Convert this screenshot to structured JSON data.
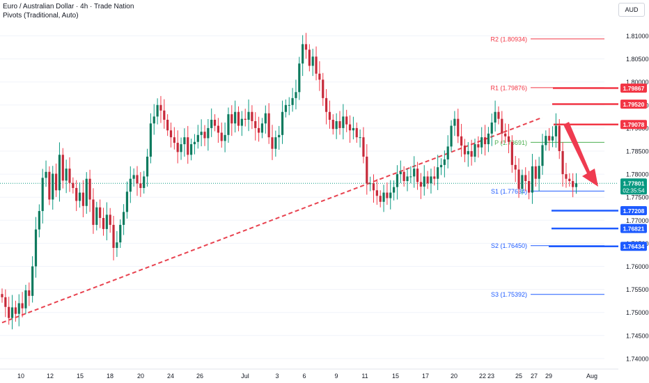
{
  "header": {
    "title": "Euro / Australian Dollar · 4h · Trade Nation",
    "subtitle": "Pivots (Traditional, Auto)",
    "currency_button": "AUD"
  },
  "colors": {
    "up": "#089981",
    "down": "#f23645",
    "body_up": "#0e7a5e",
    "body_down": "#c62a3a",
    "resistance": "#f23645",
    "support": "#1e5bff",
    "pivot_p": "#4caf50",
    "trendline": "#e8424f",
    "arrow": "#ef3b50",
    "price_tag": "#089981",
    "grid": "#f0f3fa"
  },
  "chart_data": {
    "type": "candlestick",
    "ylim": [
      1.74,
      1.812
    ],
    "y_ticks": [
      "1.81000",
      "1.80500",
      "1.80000",
      "1.79500",
      "1.79000",
      "1.78500",
      "1.78000",
      "1.77500",
      "1.77000",
      "1.76500",
      "1.76000",
      "1.75500",
      "1.75000",
      "1.74500",
      "1.74000"
    ],
    "x_ticks": [
      "10",
      "12",
      "15",
      "18",
      "20",
      "24",
      "26",
      "Jul",
      "3",
      "6",
      "9",
      "11",
      "15",
      "17",
      "20",
      "22",
      "23",
      "25",
      "27",
      "29",
      "Aug"
    ],
    "pivots": [
      {
        "label": "R2 (1.80934)",
        "value": 1.80934,
        "color": "resistance"
      },
      {
        "label": "R1 (1.79876)",
        "value": 1.79876,
        "color": "resistance"
      },
      {
        "label": "P (1.78691)",
        "value": 1.78691,
        "color": "pivot_p"
      },
      {
        "label": "S1 (1.77634)",
        "value": 1.77634,
        "color": "support"
      },
      {
        "label": "S2 (1.76450)",
        "value": 1.7645,
        "color": "support"
      },
      {
        "label": "S3 (1.75392)",
        "value": 1.75392,
        "color": "support"
      }
    ],
    "resistance_levels": [
      1.79867,
      1.7952,
      1.79078
    ],
    "support_levels": [
      1.77208,
      1.76821,
      1.76434
    ],
    "level_labels": {
      "r_a": "1.79867",
      "r_b": "1.79520",
      "r_c": "1.79078",
      "s_a": "1.77208",
      "s_b": "1.76821",
      "s_c": "1.76434"
    },
    "current_price": {
      "value": 1.77801,
      "label": "1.77801",
      "countdown": "02:35:54"
    },
    "trendline": {
      "from_index": 0,
      "from_value": 1.7478,
      "to_index": 160,
      "to_value": 1.7923
    },
    "arrow": "bearish",
    "closes": [
      1.7533,
      1.7512,
      1.7488,
      1.7511,
      1.7497,
      1.752,
      1.7509,
      1.7548,
      1.7536,
      1.76,
      1.768,
      1.772,
      1.7792,
      1.7805,
      1.7745,
      1.7801,
      1.7765,
      1.7842,
      1.7786,
      1.7812,
      1.7781,
      1.777,
      1.7742,
      1.776,
      1.7731,
      1.779,
      1.7745,
      1.769,
      1.7728,
      1.7705,
      1.7681,
      1.7712,
      1.769,
      1.764,
      1.7652,
      1.769,
      1.7718,
      1.7762,
      1.779,
      1.7798,
      1.778,
      1.777,
      1.7795,
      1.7838,
      1.791,
      1.7925,
      1.795,
      1.7938,
      1.7918,
      1.7895,
      1.788,
      1.7868,
      1.7848,
      1.7865,
      1.788,
      1.7842,
      1.7865,
      1.787,
      1.7885,
      1.7892,
      1.7878,
      1.79,
      1.7918,
      1.7905,
      1.789,
      1.7872,
      1.7885,
      1.793,
      1.791,
      1.7935,
      1.7905,
      1.792,
      1.7918,
      1.7935,
      1.7915,
      1.79,
      1.789,
      1.791,
      1.7932,
      1.788,
      1.7855,
      1.788,
      1.7885,
      1.7935,
      1.795,
      1.795,
      1.7965,
      1.7978,
      1.804,
      1.8082,
      1.807,
      1.8035,
      1.8055,
      1.8018,
      1.8005,
      1.7965,
      1.7935,
      1.7918,
      1.7898,
      1.7915,
      1.79,
      1.7925,
      1.7908,
      1.7895,
      1.79,
      1.788,
      1.788,
      1.7838,
      1.778,
      1.778,
      1.7765,
      1.7753,
      1.774,
      1.776,
      1.7748,
      1.776,
      1.7772,
      1.78,
      1.7805,
      1.7785,
      1.7795,
      1.7795,
      1.7812,
      1.7783,
      1.7773,
      1.7795,
      1.778,
      1.7795,
      1.779,
      1.7815,
      1.782,
      1.7832,
      1.786,
      1.7905,
      1.792,
      1.7882,
      1.7862,
      1.7843,
      1.785,
      1.7838,
      1.7865,
      1.7858,
      1.788,
      1.7865,
      1.7888,
      1.7912,
      1.7935,
      1.792,
      1.7888,
      1.7882,
      1.787,
      1.782,
      1.781,
      1.7768,
      1.7798,
      1.7785,
      1.776,
      1.7817,
      1.779,
      1.7818,
      1.7863,
      1.7883,
      1.7873,
      1.7882,
      1.7905,
      1.785,
      1.78,
      1.779,
      1.7785,
      1.7772,
      1.778
    ],
    "opens": [
      1.754,
      1.7533,
      1.7512,
      1.7488,
      1.7511,
      1.7497,
      1.752,
      1.7509,
      1.7548,
      1.7536,
      1.76,
      1.768,
      1.772,
      1.7792,
      1.7805,
      1.7745,
      1.7801,
      1.7765,
      1.7842,
      1.7786,
      1.7812,
      1.7781,
      1.777,
      1.7742,
      1.776,
      1.7731,
      1.779,
      1.7745,
      1.769,
      1.7728,
      1.7705,
      1.7681,
      1.7712,
      1.769,
      1.764,
      1.7652,
      1.769,
      1.7718,
      1.7762,
      1.779,
      1.7798,
      1.778,
      1.777,
      1.7795,
      1.7838,
      1.791,
      1.7925,
      1.795,
      1.7938,
      1.7918,
      1.7895,
      1.788,
      1.7868,
      1.7848,
      1.7865,
      1.788,
      1.7842,
      1.7865,
      1.787,
      1.7885,
      1.7892,
      1.7878,
      1.79,
      1.7918,
      1.7905,
      1.789,
      1.7872,
      1.7885,
      1.793,
      1.791,
      1.7935,
      1.7905,
      1.792,
      1.7918,
      1.7935,
      1.7915,
      1.79,
      1.789,
      1.791,
      1.7932,
      1.788,
      1.7855,
      1.788,
      1.7885,
      1.7935,
      1.795,
      1.795,
      1.7965,
      1.7978,
      1.804,
      1.8082,
      1.807,
      1.8035,
      1.8055,
      1.8018,
      1.8005,
      1.7965,
      1.7935,
      1.7918,
      1.7898,
      1.7915,
      1.79,
      1.7925,
      1.7908,
      1.7895,
      1.79,
      1.788,
      1.788,
      1.7838,
      1.778,
      1.778,
      1.7765,
      1.7753,
      1.774,
      1.776,
      1.7748,
      1.776,
      1.7772,
      1.78,
      1.7805,
      1.7785,
      1.7795,
      1.7795,
      1.7812,
      1.7783,
      1.7773,
      1.7795,
      1.778,
      1.7795,
      1.779,
      1.7815,
      1.782,
      1.7832,
      1.786,
      1.7905,
      1.792,
      1.7882,
      1.7862,
      1.7843,
      1.785,
      1.7838,
      1.7865,
      1.7858,
      1.788,
      1.7865,
      1.7888,
      1.7912,
      1.7935,
      1.792,
      1.7888,
      1.7882,
      1.787,
      1.782,
      1.781,
      1.7768,
      1.7798,
      1.7785,
      1.776,
      1.7817,
      1.779,
      1.7818,
      1.7863,
      1.7883,
      1.7873,
      1.7882,
      1.7905,
      1.785,
      1.78,
      1.779,
      1.7785,
      1.7772
    ]
  }
}
